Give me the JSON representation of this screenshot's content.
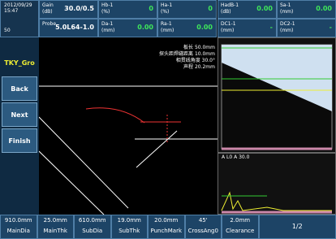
{
  "header": {
    "date": "2012/09/29",
    "time": "15:47",
    "channel": "50"
  },
  "top_fields": [
    [
      {
        "label": "Gain",
        "unit": "(dB)",
        "value": "30.0/0.5"
      },
      {
        "label": "Hb-1",
        "unit": "(%)",
        "value": "0"
      },
      {
        "label": "Ha-1",
        "unit": "(%)",
        "value": "0"
      },
      {
        "label": "HadB-1",
        "unit": "(dB)",
        "value": "0.00"
      },
      {
        "label": "Sa-1",
        "unit": "(mm)",
        "value": "0.00"
      }
    ],
    [
      {
        "label": "Probe",
        "unit": "",
        "value": "5.0L64-1.0"
      },
      {
        "label": "Da-1",
        "unit": "(mm)",
        "value": "0.00"
      },
      {
        "label": "Ra-1",
        "unit": "(mm)",
        "value": "0.00"
      },
      {
        "label": "DC1-1",
        "unit": "(mm)",
        "value": "-"
      },
      {
        "label": "DC2-1",
        "unit": "(mm)",
        "value": "-"
      }
    ]
  ],
  "side_buttons": [
    "TKY_Gro",
    "Back",
    "Next",
    "Finish"
  ],
  "info_lines": [
    "板长 50.0mm",
    "探头距焊缝距离 10.0mm",
    "相贯线角度 30.0°",
    "声程 20.2mm"
  ],
  "ascan_header": "A  L0 A 30.0",
  "bottom_params": [
    {
      "value": "910.0mm",
      "name": "MainDia"
    },
    {
      "value": "25.0mm",
      "name": "MainThk"
    },
    {
      "value": "610.0mm",
      "name": "SubDia"
    },
    {
      "value": "19.0mm",
      "name": "SubThk"
    },
    {
      "value": "20.0mm",
      "name": "PunchMark"
    },
    {
      "value": "45'",
      "name": "CrossAng0"
    },
    {
      "value": "2.0mm",
      "name": "Clearance"
    }
  ],
  "page": "1/2"
}
